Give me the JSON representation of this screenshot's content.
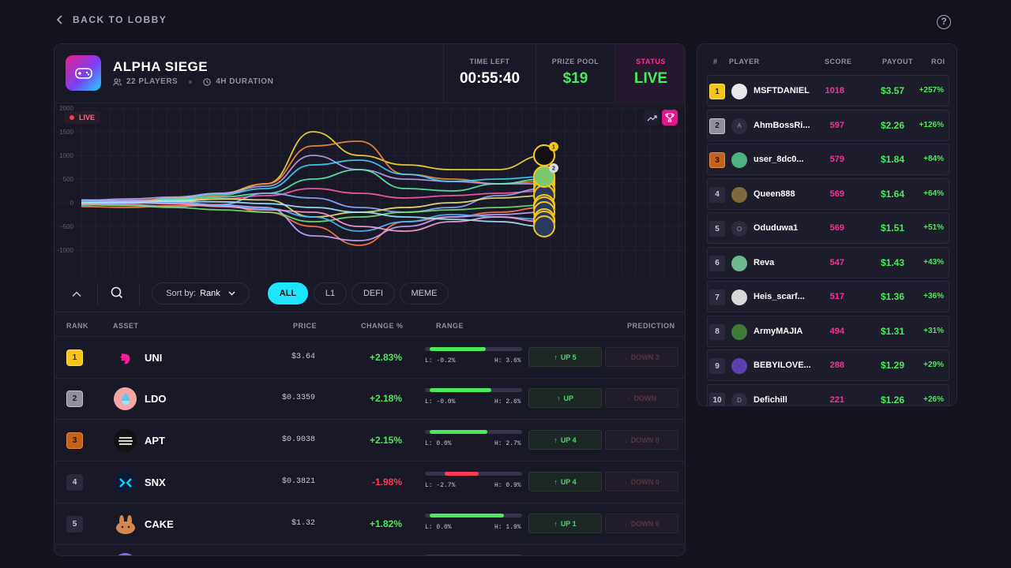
{
  "nav": {
    "back_label": "BACK TO LOBBY",
    "help_icon": "question-circle-icon"
  },
  "game": {
    "title": "ALPHA SIEGE",
    "players": "22 PLAYERS",
    "duration": "4H DURATION",
    "time_left_label": "TIME LEFT",
    "time_left": "00:55:40",
    "prize_pool_label": "PRIZE POOL",
    "prize_pool": "$19",
    "status_label": "STATUS",
    "status": "LIVE",
    "live_badge": "LIVE"
  },
  "colors": {
    "accent_green": "#4bea5a",
    "accent_pink": "#ff2d9a",
    "gold": "#f5c518",
    "silver": "#9a9aa8",
    "bronze": "#c2631c",
    "cyan": "#1fe8ff",
    "red": "#ff3b56"
  },
  "chart_data": {
    "type": "line",
    "yticks": [
      "2000",
      "1500",
      "1000",
      "500",
      "0",
      "-500",
      "-1000"
    ],
    "ylim": [
      -1000,
      2000
    ],
    "grid": true,
    "end_markers": [
      "1",
      "2"
    ],
    "series": [
      {
        "color": "#f5d83a",
        "values": [
          0,
          0,
          100,
          200,
          400,
          1500,
          1000,
          800,
          700,
          700,
          1000
        ]
      },
      {
        "color": "#f28b3a",
        "values": [
          0,
          50,
          80,
          150,
          400,
          1200,
          1300,
          600,
          500,
          400,
          450
        ]
      },
      {
        "color": "#b79df2",
        "values": [
          50,
          80,
          120,
          200,
          350,
          1000,
          700,
          500,
          450,
          400,
          400
        ]
      },
      {
        "color": "#3fd1ff",
        "values": [
          -50,
          0,
          80,
          180,
          300,
          800,
          900,
          600,
          450,
          500,
          550
        ]
      },
      {
        "color": "#5af0a8",
        "values": [
          20,
          30,
          60,
          120,
          200,
          500,
          700,
          300,
          250,
          400,
          500
        ]
      },
      {
        "color": "#ff5ca8",
        "values": [
          -30,
          -20,
          40,
          80,
          150,
          300,
          200,
          100,
          150,
          200,
          250
        ]
      },
      {
        "color": "#8fa8ff",
        "values": [
          0,
          -40,
          -80,
          -40,
          200,
          100,
          -100,
          -200,
          -100,
          150,
          300
        ]
      },
      {
        "color": "#e8e27a",
        "values": [
          10,
          20,
          40,
          80,
          60,
          -300,
          -200,
          -100,
          0,
          100,
          150
        ]
      },
      {
        "color": "#ff7a4a",
        "values": [
          -80,
          -100,
          -60,
          -40,
          -200,
          -500,
          -900,
          -400,
          -300,
          -200,
          -100
        ]
      },
      {
        "color": "#c7a6ff",
        "values": [
          60,
          40,
          20,
          -50,
          -100,
          -700,
          -800,
          -500,
          -300,
          -250,
          -200
        ]
      },
      {
        "color": "#6ee56e",
        "values": [
          -40,
          -60,
          -100,
          -150,
          -200,
          -400,
          -300,
          -200,
          -150,
          -100,
          -50
        ]
      },
      {
        "color": "#4fb6ff",
        "values": [
          30,
          20,
          0,
          -60,
          -120,
          -300,
          -600,
          -400,
          -250,
          -300,
          -350
        ]
      },
      {
        "color": "#ff9fd0",
        "values": [
          -10,
          0,
          -20,
          -80,
          -150,
          -200,
          -500,
          -600,
          -400,
          -300,
          -400
        ]
      },
      {
        "color": "#a0e5ff",
        "values": [
          0,
          10,
          30,
          20,
          -20,
          -100,
          -200,
          -300,
          -350,
          -400,
          -500
        ]
      }
    ]
  },
  "filters": {
    "sort_label": "Sort by:",
    "sort_value": "Rank",
    "tabs": [
      "ALL",
      "L1",
      "DEFI",
      "MEME"
    ]
  },
  "table": {
    "headers": {
      "rank": "RANK",
      "asset": "ASSET",
      "price": "PRICE",
      "change": "CHANGE %",
      "range": "RANGE",
      "prediction": "PREDICTION"
    },
    "rows": [
      {
        "rank": "1",
        "name": "UNI",
        "price": "$3.64",
        "change": "+2.83%",
        "range_pos": 0.78,
        "range_up": true,
        "low": "L: -0.2%",
        "high": "H: 3.6%",
        "up": "UP 5",
        "down": "DOWN 3"
      },
      {
        "rank": "2",
        "name": "LDO",
        "price": "$0.3359",
        "change": "+2.18%",
        "range_pos": 0.84,
        "range_up": true,
        "low": "L: -0.0%",
        "high": "H: 2.6%",
        "up": "UP",
        "down": "DOWN"
      },
      {
        "rank": "3",
        "name": "APT",
        "price": "$0.9038",
        "change": "+2.15%",
        "range_pos": 0.8,
        "range_up": true,
        "low": "L: 0.0%",
        "high": "H: 2.7%",
        "up": "UP 4",
        "down": "DOWN 0"
      },
      {
        "rank": "4",
        "name": "SNX",
        "price": "$0.3821",
        "change": "-1.98%",
        "range_pos": 0.55,
        "range_up": false,
        "low": "L: -2.7%",
        "high": "H: 0.9%",
        "up": "UP 4",
        "down": "DOWN 0"
      },
      {
        "rank": "5",
        "name": "CAKE",
        "price": "$1.32",
        "change": "+1.82%",
        "range_pos": 0.97,
        "range_up": true,
        "low": "L: 0.0%",
        "high": "H: 1.9%",
        "up": "UP 1",
        "down": "DOWN 0"
      }
    ]
  },
  "leaderboard": {
    "headers": {
      "rank": "#",
      "player": "PLAYER",
      "score": "SCORE",
      "payout": "PAYOUT",
      "roi": "ROI"
    },
    "rows": [
      {
        "rank": "1",
        "initial": "",
        "name": "MSFTDANIEL",
        "score": "1018",
        "payout": "$3.57",
        "roi": "+257%"
      },
      {
        "rank": "2",
        "initial": "A",
        "name": "AhmBossRi...",
        "score": "597",
        "payout": "$2.26",
        "roi": "+126%"
      },
      {
        "rank": "3",
        "initial": "",
        "name": "user_8dc0...",
        "score": "579",
        "payout": "$1.84",
        "roi": "+84%"
      },
      {
        "rank": "4",
        "initial": "",
        "name": "Queen888",
        "score": "569",
        "payout": "$1.64",
        "roi": "+64%"
      },
      {
        "rank": "5",
        "initial": "O",
        "name": "Oduduwa1",
        "score": "569",
        "payout": "$1.51",
        "roi": "+51%"
      },
      {
        "rank": "6",
        "initial": "",
        "name": "Reva",
        "score": "547",
        "payout": "$1.43",
        "roi": "+43%"
      },
      {
        "rank": "7",
        "initial": "",
        "name": "Heis_scarf...",
        "score": "517",
        "payout": "$1.36",
        "roi": "+36%"
      },
      {
        "rank": "8",
        "initial": "",
        "name": "ArmyMAJIA",
        "score": "494",
        "payout": "$1.31",
        "roi": "+31%"
      },
      {
        "rank": "9",
        "initial": "",
        "name": "BEBYILOVE...",
        "score": "288",
        "payout": "$1.29",
        "roi": "+29%"
      },
      {
        "rank": "10",
        "initial": "D",
        "name": "Defichill",
        "score": "221",
        "payout": "$1.26",
        "roi": "+26%"
      }
    ]
  }
}
